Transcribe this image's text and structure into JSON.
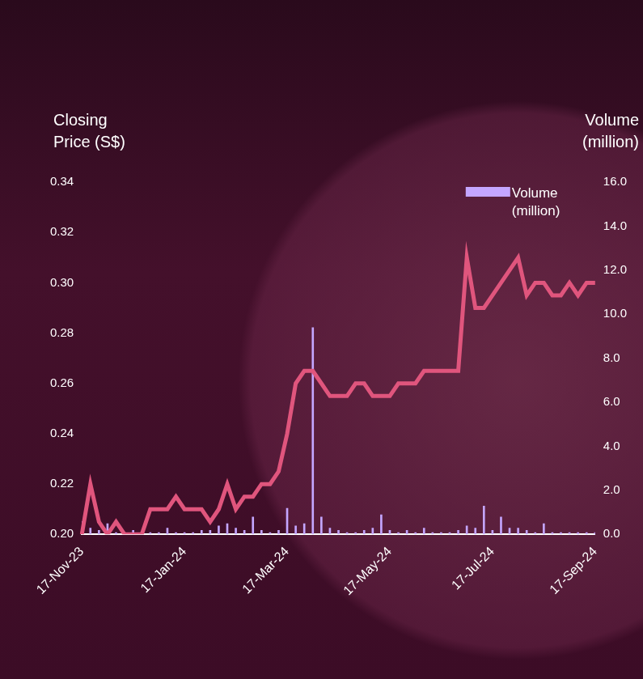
{
  "chart_data": {
    "type": "line",
    "y_label": "Closing Price (S$)",
    "y2_label": "Volume (million)",
    "categories": [
      "17-Nov-23",
      null,
      null,
      null,
      null,
      null,
      null,
      null,
      null,
      null,
      null,
      null,
      "17-Jan-24",
      null,
      null,
      null,
      null,
      null,
      null,
      null,
      null,
      null,
      null,
      null,
      "17-Mar-24",
      null,
      null,
      null,
      null,
      null,
      null,
      null,
      null,
      null,
      null,
      null,
      "17-May-24",
      null,
      null,
      null,
      null,
      null,
      null,
      null,
      null,
      null,
      null,
      null,
      "17-Jul-24",
      null,
      null,
      null,
      null,
      null,
      null,
      null,
      null,
      null,
      null,
      null,
      "17-Sep-24"
    ],
    "series": [
      {
        "name": "Closing Price (S$)",
        "type": "line",
        "color": "#e0557d",
        "axis": "y",
        "values": [
          0.2,
          0.22,
          0.205,
          0.2,
          0.205,
          0.2,
          0.2,
          0.2,
          0.21,
          0.21,
          0.21,
          0.215,
          0.21,
          0.21,
          0.21,
          0.205,
          0.21,
          0.22,
          0.21,
          0.215,
          0.215,
          0.22,
          0.22,
          0.225,
          0.24,
          0.26,
          0.265,
          0.265,
          0.26,
          0.255,
          0.255,
          0.255,
          0.26,
          0.26,
          0.255,
          0.255,
          0.255,
          0.26,
          0.26,
          0.26,
          0.265,
          0.265,
          0.265,
          0.265,
          0.265,
          0.31,
          0.29,
          0.29,
          0.295,
          0.3,
          0.305,
          0.31,
          0.295,
          0.3,
          0.3,
          0.295,
          0.295,
          0.3,
          0.295,
          0.3,
          0.3
        ]
      },
      {
        "name": "Volume (million)",
        "type": "bar",
        "color": "#c4a6ff",
        "axis": "y2",
        "values": [
          0.6,
          0.3,
          0.2,
          0.5,
          0.1,
          0.1,
          0.2,
          0.1,
          0.1,
          0.1,
          0.3,
          0.1,
          0.1,
          0.1,
          0.2,
          0.2,
          0.4,
          0.5,
          0.3,
          0.2,
          0.8,
          0.2,
          0.1,
          0.2,
          1.2,
          0.4,
          0.5,
          9.4,
          0.8,
          0.3,
          0.2,
          0.1,
          0.1,
          0.2,
          0.3,
          0.9,
          0.2,
          0.1,
          0.2,
          0.1,
          0.3,
          0.1,
          0.1,
          0.1,
          0.2,
          0.4,
          0.3,
          1.3,
          0.2,
          0.8,
          0.3,
          0.3,
          0.2,
          0.1,
          0.5,
          0.1,
          0.1,
          0.1,
          0.1,
          0.1,
          0.1
        ]
      }
    ],
    "ylim": [
      0.2,
      0.34
    ],
    "yticks": [
      {
        "value": 0.2,
        "label": "0.20"
      },
      {
        "value": 0.22,
        "label": "0.22"
      },
      {
        "value": 0.24,
        "label": "0.24"
      },
      {
        "value": 0.26,
        "label": "0.26"
      },
      {
        "value": 0.28,
        "label": "0.28"
      },
      {
        "value": 0.3,
        "label": "0.30"
      },
      {
        "value": 0.32,
        "label": "0.32"
      },
      {
        "value": 0.34,
        "label": "0.34"
      }
    ],
    "y2lim": [
      0,
      16
    ],
    "y2ticks": [
      {
        "value": 0,
        "label": "0.0"
      },
      {
        "value": 2,
        "label": "2.0"
      },
      {
        "value": 4,
        "label": "4.0"
      },
      {
        "value": 6,
        "label": "6.0"
      },
      {
        "value": 8,
        "label": "8.0"
      },
      {
        "value": 10,
        "label": "10.0"
      },
      {
        "value": 12,
        "label": "12.0"
      },
      {
        "value": 14,
        "label": "14.0"
      },
      {
        "value": 16,
        "label": "16.0"
      }
    ],
    "grid": false,
    "legend": "top-right"
  }
}
